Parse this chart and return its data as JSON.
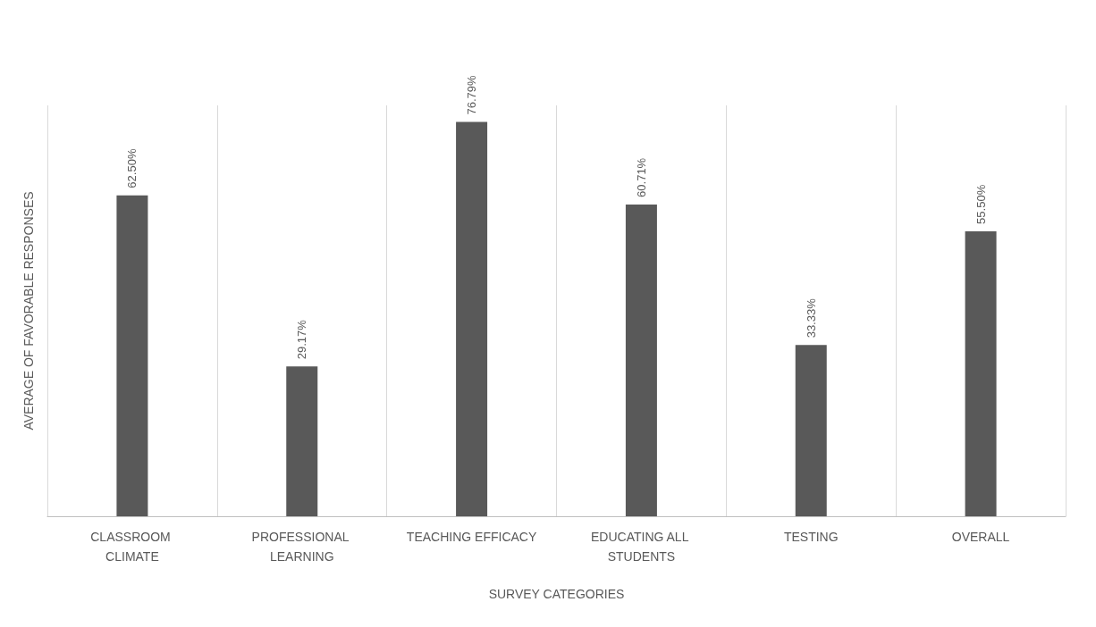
{
  "chart_data": {
    "type": "bar",
    "xlabel": "SURVEY CATEGORIES",
    "ylabel": "AVERAGE OF FAVORABLE RESPONSES",
    "categories": [
      "CLASSROOM CLIMATE",
      "PROFESSIONAL LEARNING",
      "TEACHING EFFICACY",
      "EDUCATING ALL STUDENTS",
      "TESTING",
      "OVERALL"
    ],
    "values": [
      62.5,
      29.17,
      76.79,
      60.71,
      33.33,
      55.5
    ],
    "value_labels": [
      "62.50%",
      "29.17%",
      "76.79%",
      "60.71%",
      "33.33%",
      "55.50%"
    ],
    "color": "#595959",
    "grid": "x"
  }
}
